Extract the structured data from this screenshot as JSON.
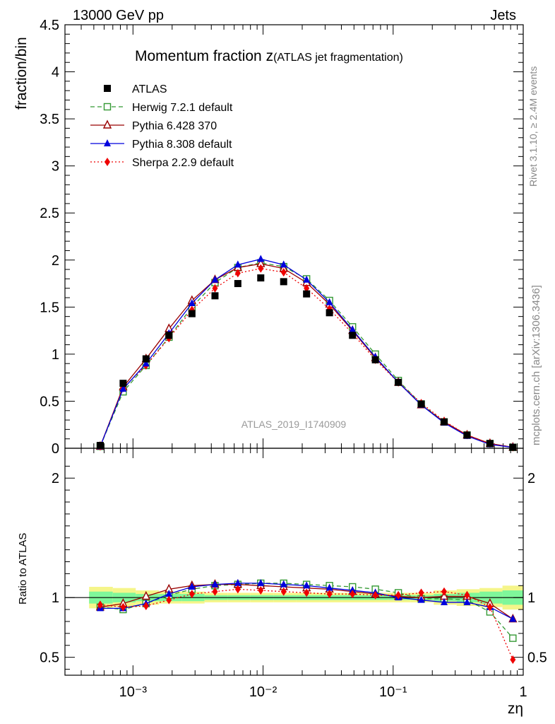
{
  "header": {
    "left": "13000 GeV pp",
    "right": "Jets"
  },
  "side_text": {
    "rivet": "Rivet 3.1.10, ≥ 2.4M events",
    "mcplots": "mcplots.cern.ch [arXiv:1306.3436]"
  },
  "colors": {
    "atlas": "#000000",
    "herwig": "#339933",
    "pythia6": "#990000",
    "pythia8": "#0000dd",
    "sherpa": "#ee0000",
    "band_inner": "#7ff79a",
    "band_outer": "#f5f58a"
  },
  "chart_data": [
    {
      "type": "line",
      "title_main": "Momentum fraction z",
      "title_sub": "(ATLAS jet fragmentation)",
      "analysis_label": "ATLAS_2019_I1740909",
      "xlabel": "zη",
      "ylabel": "fraction/bin",
      "xscale": "log",
      "xlim": [
        0.0003,
        1.0
      ],
      "ylim": [
        0,
        4.5
      ],
      "x_tick_labels": [
        "10⁻³",
        "10⁻²",
        "10⁻¹",
        "1"
      ],
      "y_ticks": [
        0,
        0.5,
        1,
        1.5,
        2,
        2.5,
        3,
        3.5,
        4,
        4.5
      ],
      "y_tick_labels": [
        "0",
        "0.5",
        "1",
        "1.5",
        "2",
        "2.5",
        "3",
        "3.5",
        "4",
        "4.5"
      ],
      "legend_position": "top-left",
      "x": [
        0.00056,
        0.00084,
        0.00126,
        0.00189,
        0.00284,
        0.00427,
        0.0064,
        0.0096,
        0.0144,
        0.0216,
        0.0324,
        0.0487,
        0.073,
        0.1096,
        0.1644,
        0.2466,
        0.37,
        0.555,
        0.8325
      ],
      "series": [
        {
          "name": "ATLAS",
          "key": "atlas",
          "marker": "square",
          "line": "none",
          "values": [
            0.03,
            0.69,
            0.95,
            1.2,
            1.43,
            1.62,
            1.75,
            1.81,
            1.77,
            1.64,
            1.44,
            1.2,
            0.94,
            0.7,
            0.47,
            0.28,
            0.14,
            0.05,
            0.01
          ]
        },
        {
          "name": "Herwig 7.2.1 default",
          "key": "herwig",
          "marker": "open-square",
          "line": "dashed",
          "values": [
            0.02,
            0.6,
            0.88,
            1.18,
            1.5,
            1.76,
            1.92,
            1.97,
            1.93,
            1.8,
            1.57,
            1.29,
            1.0,
            0.72,
            0.47,
            0.28,
            0.14,
            0.05,
            0.01
          ]
        },
        {
          "name": "Pythia 6.428 370",
          "key": "pythia6",
          "marker": "open-triangle",
          "line": "solid",
          "values": [
            0.02,
            0.65,
            0.95,
            1.27,
            1.57,
            1.79,
            1.92,
            1.96,
            1.91,
            1.76,
            1.53,
            1.25,
            0.96,
            0.7,
            0.46,
            0.28,
            0.14,
            0.05,
            0.01
          ]
        },
        {
          "name": "Pythia 8.308 default",
          "key": "pythia8",
          "marker": "triangle",
          "line": "solid",
          "values": [
            0.02,
            0.63,
            0.9,
            1.22,
            1.54,
            1.79,
            1.95,
            2.01,
            1.95,
            1.79,
            1.55,
            1.26,
            0.97,
            0.7,
            0.46,
            0.27,
            0.13,
            0.04,
            0.01
          ]
        },
        {
          "name": "Sherpa 2.2.9 default",
          "key": "sherpa",
          "marker": "diamond",
          "line": "dotted",
          "values": [
            0.02,
            0.64,
            0.88,
            1.17,
            1.47,
            1.7,
            1.86,
            1.91,
            1.87,
            1.7,
            1.48,
            1.22,
            0.94,
            0.7,
            0.48,
            0.29,
            0.14,
            0.05,
            0.01
          ]
        }
      ]
    },
    {
      "type": "line",
      "title": "",
      "xlabel": "zη",
      "ylabel": "Ratio to ATLAS",
      "xscale": "log",
      "xlim": [
        0.0003,
        1.0
      ],
      "ylim": [
        0.35,
        2.25
      ],
      "y_ticks": [
        0.5,
        1,
        2
      ],
      "y_tick_labels": [
        "0.5",
        "1",
        "2"
      ],
      "x": [
        0.00056,
        0.00084,
        0.00126,
        0.00189,
        0.00284,
        0.00427,
        0.0064,
        0.0096,
        0.0144,
        0.0216,
        0.0324,
        0.0487,
        0.073,
        0.1096,
        0.1644,
        0.2466,
        0.37,
        0.555,
        0.8325
      ],
      "band_edges": [
        0.00046,
        0.0007,
        0.00105,
        0.00158,
        0.00237,
        0.00355,
        0.00533,
        0.008,
        0.012,
        0.018,
        0.027,
        0.0405,
        0.0608,
        0.0912,
        0.1368,
        0.2052,
        0.3078,
        0.4617,
        0.6925,
        1.0
      ],
      "band_inner": [
        0.05,
        0.04,
        0.03,
        0.03,
        0.03,
        0.02,
        0.02,
        0.02,
        0.02,
        0.02,
        0.02,
        0.02,
        0.02,
        0.02,
        0.02,
        0.03,
        0.04,
        0.05,
        0.06
      ],
      "band_outer": [
        0.09,
        0.08,
        0.06,
        0.05,
        0.05,
        0.04,
        0.04,
        0.04,
        0.04,
        0.04,
        0.04,
        0.04,
        0.04,
        0.04,
        0.04,
        0.06,
        0.07,
        0.08,
        0.1
      ],
      "series": [
        {
          "name": "Herwig 7.2.1 default",
          "key": "herwig",
          "marker": "open-square",
          "line": "dashed",
          "values": [
            0.92,
            0.9,
            0.95,
            1.02,
            1.07,
            1.1,
            1.11,
            1.12,
            1.12,
            1.11,
            1.1,
            1.09,
            1.07,
            1.04,
            0.99,
            0.99,
            0.98,
            0.88,
            0.66
          ]
        },
        {
          "name": "Pythia 6.428 370",
          "key": "pythia6",
          "marker": "open-triangle",
          "line": "solid",
          "values": [
            0.92,
            0.95,
            1.01,
            1.07,
            1.1,
            1.11,
            1.11,
            1.1,
            1.09,
            1.08,
            1.07,
            1.05,
            1.03,
            1.01,
            1.0,
            1.01,
            1.01,
            0.95,
            0.82
          ]
        },
        {
          "name": "Pythia 8.308 default",
          "key": "pythia8",
          "marker": "triangle",
          "line": "solid",
          "values": [
            0.91,
            0.91,
            0.95,
            1.03,
            1.09,
            1.11,
            1.12,
            1.12,
            1.11,
            1.1,
            1.08,
            1.06,
            1.04,
            1.0,
            0.98,
            0.96,
            0.96,
            0.92,
            0.82
          ]
        },
        {
          "name": "Sherpa 2.2.9 default",
          "key": "sherpa",
          "marker": "diamond",
          "line": "dotted",
          "values": [
            0.94,
            0.92,
            0.93,
            0.98,
            1.03,
            1.05,
            1.07,
            1.06,
            1.05,
            1.04,
            1.03,
            1.03,
            1.02,
            1.02,
            1.04,
            1.05,
            1.02,
            0.92,
            0.48
          ]
        }
      ]
    }
  ]
}
